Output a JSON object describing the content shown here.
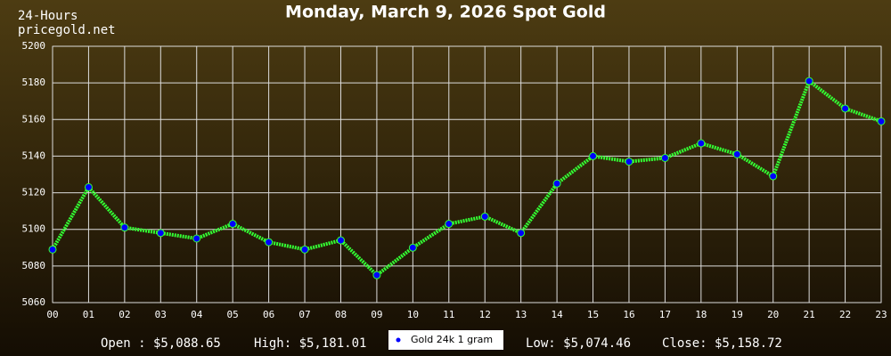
{
  "chart_data": {
    "type": "line",
    "title": "Monday, March 9, 2026 Spot Gold",
    "corner_labels": [
      "24-Hours",
      "pricegold.net"
    ],
    "footer": [
      "Open : $5,088.65",
      "High: $5,181.01",
      "Low: $5,074.46",
      "Close: $5,158.72"
    ],
    "categories": [
      "00",
      "01",
      "02",
      "03",
      "04",
      "05",
      "06",
      "07",
      "08",
      "09",
      "10",
      "11",
      "12",
      "13",
      "14",
      "15",
      "16",
      "17",
      "18",
      "19",
      "20",
      "21",
      "22",
      "23"
    ],
    "series": [
      {
        "name": "Gold 24k 1 gram",
        "color": "#33ff33",
        "values": [
          5089,
          5123,
          5101,
          5098,
          5095,
          5103,
          5093,
          5089,
          5094,
          5075,
          5090,
          5103,
          5107,
          5098,
          5125,
          5140,
          5137,
          5139,
          5147,
          5141,
          5129,
          5181,
          5166,
          5159
        ]
      }
    ],
    "ylim": [
      5060,
      5200
    ],
    "yticks": [
      5060,
      5080,
      5100,
      5120,
      5140,
      5160,
      5180,
      5200
    ],
    "grid": true
  }
}
